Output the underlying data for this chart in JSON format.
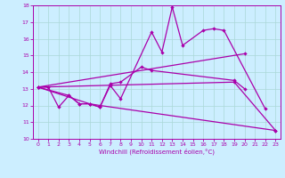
{
  "title": "",
  "xlabel": "Windchill (Refroidissement éolien,°C)",
  "xlim": [
    -0.5,
    23.5
  ],
  "ylim": [
    10,
    18
  ],
  "xticks": [
    0,
    1,
    2,
    3,
    4,
    5,
    6,
    7,
    8,
    9,
    10,
    11,
    12,
    13,
    14,
    15,
    16,
    17,
    18,
    19,
    20,
    21,
    22,
    23
  ],
  "yticks": [
    10,
    11,
    12,
    13,
    14,
    15,
    16,
    17,
    18
  ],
  "bg_color": "#cceeff",
  "line_color": "#aa00aa",
  "line1_x": [
    0,
    1,
    2,
    3,
    4,
    5,
    6,
    7,
    8,
    11,
    12,
    13,
    14,
    16,
    17,
    18,
    22
  ],
  "line1_y": [
    13.1,
    13.1,
    11.9,
    12.6,
    12.1,
    12.1,
    11.9,
    13.2,
    12.4,
    16.4,
    15.2,
    17.9,
    15.6,
    16.5,
    16.6,
    16.5,
    11.8
  ],
  "line2_x": [
    0,
    3,
    4,
    5,
    6,
    7,
    8,
    10,
    11,
    19,
    20
  ],
  "line2_y": [
    13.1,
    12.6,
    12.1,
    12.1,
    11.9,
    13.3,
    13.4,
    14.3,
    14.1,
    13.5,
    13.0
  ],
  "line3_x": [
    0,
    20
  ],
  "line3_y": [
    13.1,
    15.1
  ],
  "line4_x": [
    0,
    5,
    6,
    23
  ],
  "line4_y": [
    13.1,
    12.1,
    12.0,
    10.5
  ],
  "line5_x": [
    0,
    19,
    23
  ],
  "line5_y": [
    13.1,
    13.4,
    10.5
  ]
}
